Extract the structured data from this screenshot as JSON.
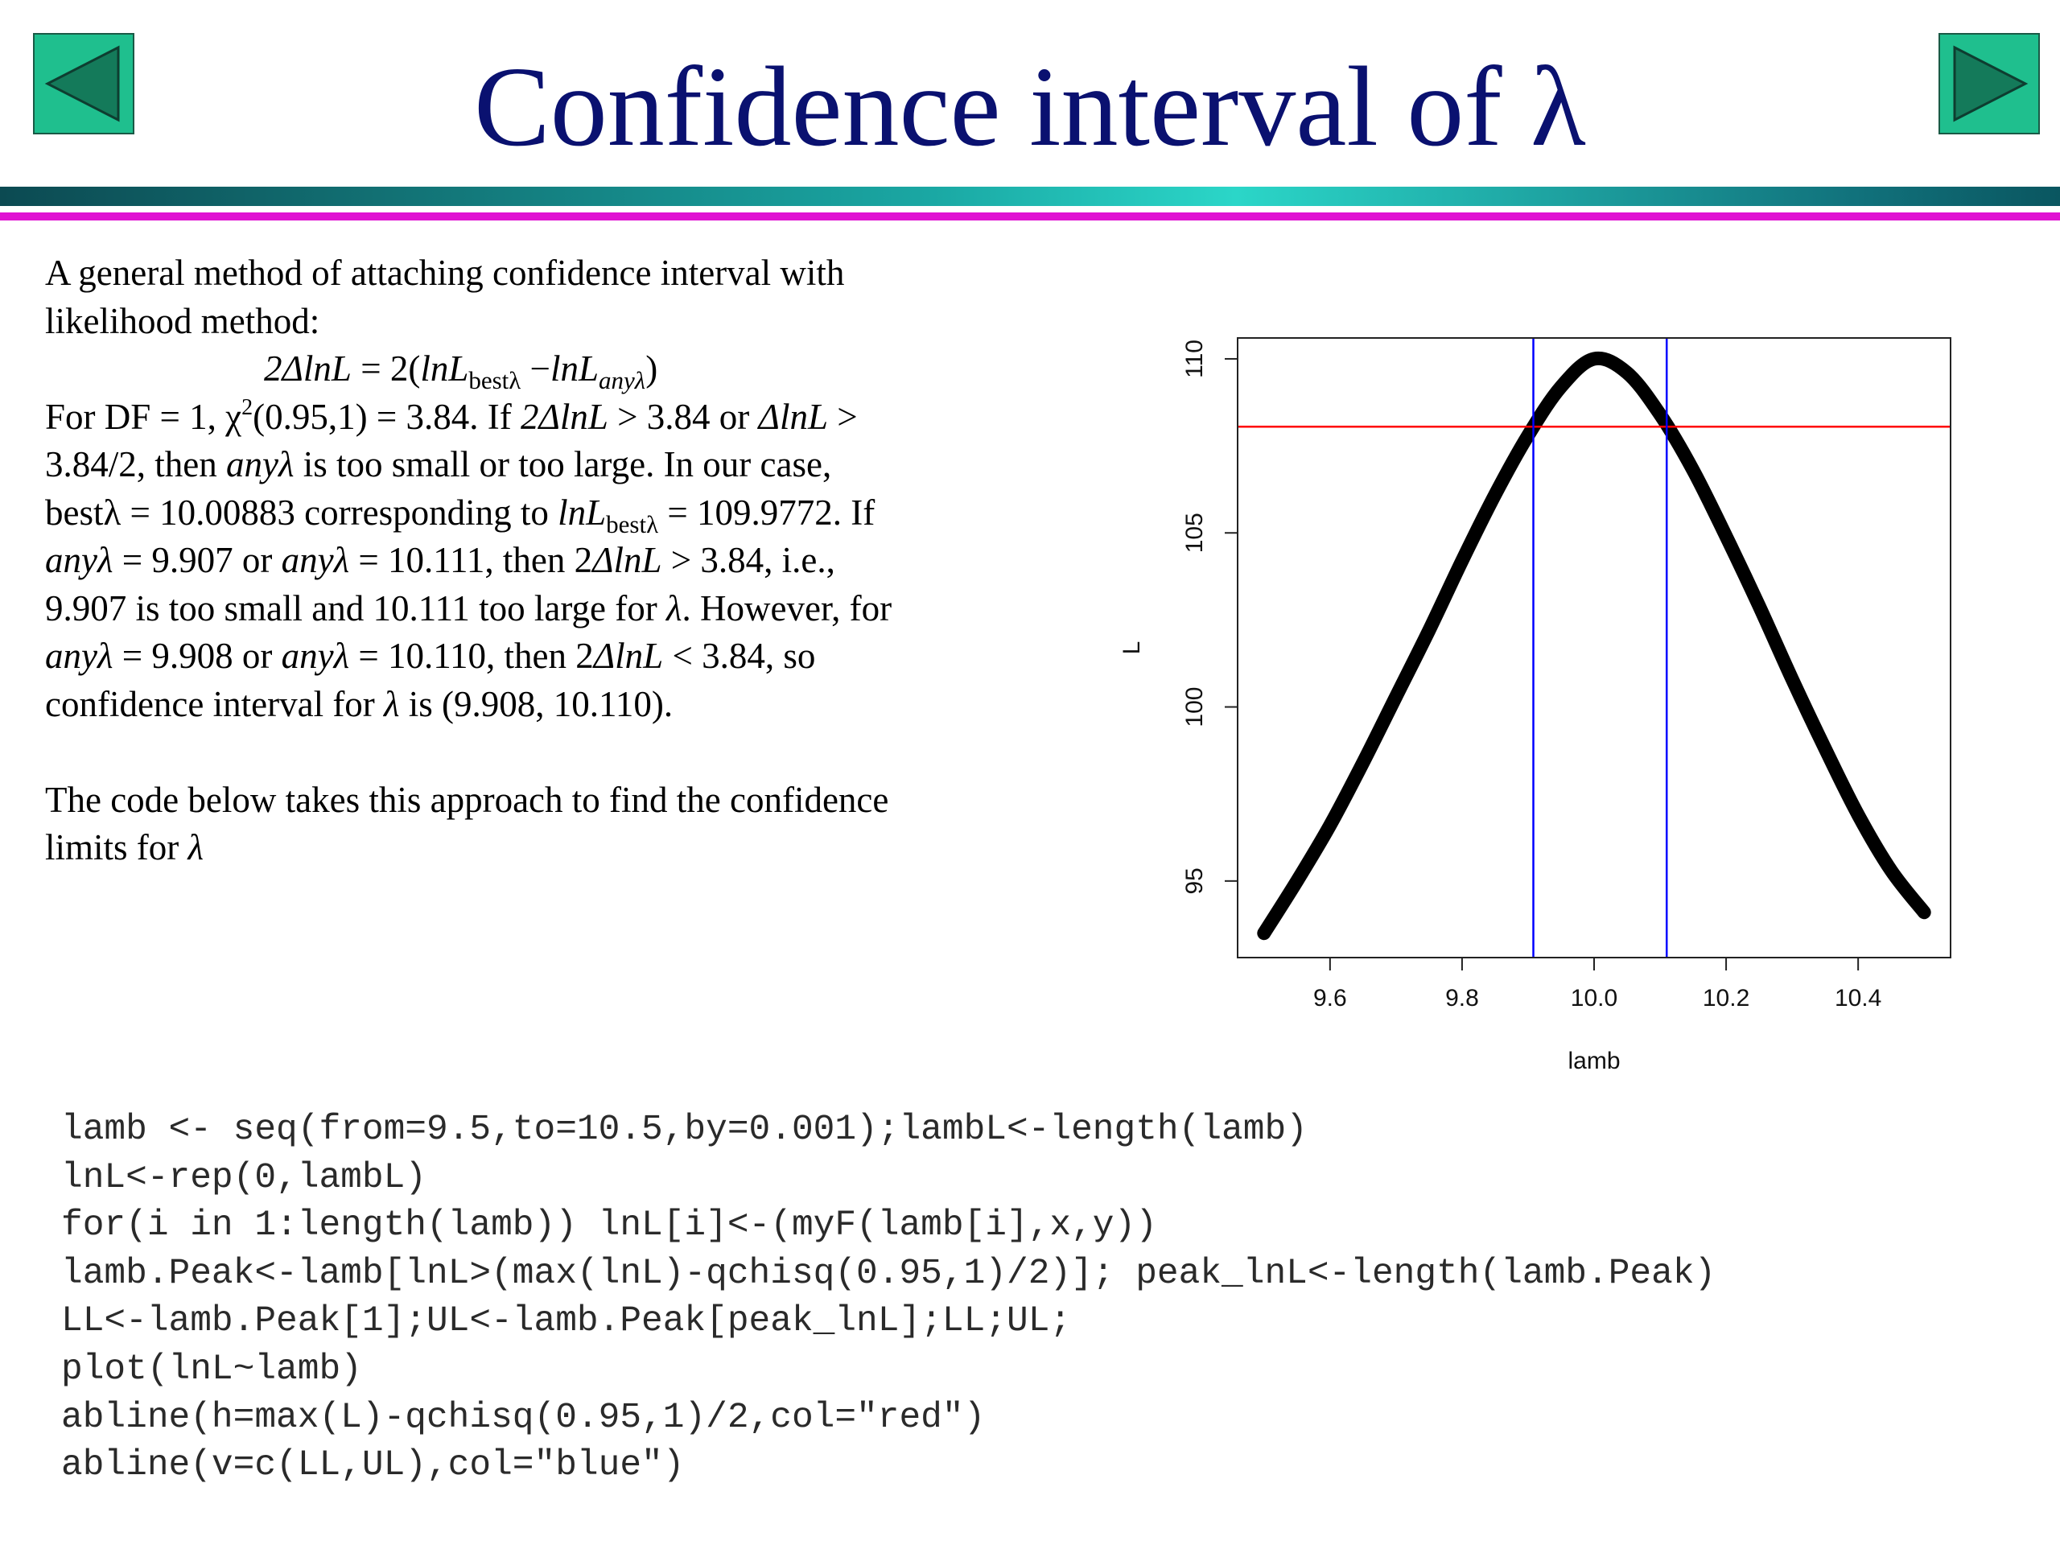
{
  "title": "Confidence interval of λ",
  "nav": {
    "prev_icon": "triangle-left-icon",
    "next_icon": "triangle-right-icon",
    "button_color": "#1fbf8e"
  },
  "text": {
    "p1a": "A general method of attaching confidence interval with",
    "p1b": "likelihood method:",
    "eq_lhs": "2ΔlnL",
    "eq_eq": " = 2(",
    "eq_t1": "lnL",
    "eq_s1": "bestλ",
    "eq_minus": "  −",
    "eq_t2": "lnL",
    "eq_s2": "anyλ",
    "eq_close": ")",
    "l3a": "For DF = 1, χ",
    "l3sup": "2",
    "l3b": "(0.95,1) = 3.84. If ",
    "l3c": "2ΔlnL",
    "l3d": " > 3.84 or ",
    "l3e": "ΔlnL",
    "l3f": " >",
    "l4a": "3.84/2, then ",
    "l4b": "anyλ",
    "l4c": " is too small or too large. In our case,",
    "l5a": "bestλ = 10.00883 corresponding to ",
    "l5b": "lnL",
    "l5sub": "bestλ",
    "l5c": " = 109.9772. If",
    "l6a": "anyλ",
    "l6b": " = 9.907 or ",
    "l6c": "anyλ",
    "l6d": " = 10.111, then 2",
    "l6e": "ΔlnL",
    "l6f": " > 3.84, i.e.,",
    "l7a": "9.907 is too small and 10.111 too large for ",
    "l7b": "λ",
    "l7c": ". However, for",
    "l8a": "anyλ",
    "l8b": " = 9.908 or ",
    "l8c": "anyλ",
    "l8d": " = 10.110, then 2",
    "l8e": "ΔlnL",
    "l8f": " < 3.84, so",
    "l9a": "confidence interval for ",
    "l9b": "λ",
    "l9c": " is (9.908, 10.110).",
    "p3a": "The code below takes this approach to find the confidence",
    "p3b": "limits for ",
    "p3c": "λ"
  },
  "code": [
    "lamb <- seq(from=9.5,to=10.5,by=0.001);lambL<-length(lamb)",
    "lnL<-rep(0,lambL)",
    "for(i in 1:length(lamb)) lnL[i]<-(myF(lamb[i],x,y))",
    "lamb.Peak<-lamb[lnL>(max(lnL)-qchisq(0.95,1)/2)]; peak_lnL<-length(lamb.Peak)",
    "LL<-lamb.Peak[1];UL<-lamb.Peak[peak_lnL];LL;UL;",
    "plot(lnL~lamb)",
    "abline(h=max(L)-qchisq(0.95,1)/2,col=\"red\")",
    "abline(v=c(LL,UL),col=\"blue\")"
  ],
  "chart_data": {
    "type": "line",
    "xlabel": "lamb",
    "ylabel": "L",
    "xlim": [
      9.46,
      10.54
    ],
    "ylim": [
      92.8,
      110.6
    ],
    "xticks": [
      9.6,
      9.8,
      10.0,
      10.2,
      10.4
    ],
    "xtick_labels": [
      "9.6",
      "9.8",
      "10.0",
      "10.2",
      "10.4"
    ],
    "yticks": [
      95,
      100,
      105,
      110
    ],
    "ytick_labels": [
      "95",
      "100",
      "105",
      "110"
    ],
    "series": [
      {
        "color": "#000000",
        "x": [
          9.5,
          9.55,
          9.6,
          9.65,
          9.7,
          9.75,
          9.8,
          9.85,
          9.9,
          9.95,
          10.0,
          10.05,
          10.1,
          10.15,
          10.2,
          10.25,
          10.3,
          10.35,
          10.4,
          10.45,
          10.5
        ],
        "y": [
          93.5,
          95.0,
          96.6,
          98.4,
          100.3,
          102.2,
          104.2,
          106.1,
          107.8,
          109.2,
          110.0,
          109.6,
          108.4,
          106.8,
          104.9,
          102.9,
          100.8,
          98.8,
          96.9,
          95.3,
          94.1
        ]
      }
    ],
    "hline": {
      "y": 108.05,
      "color": "#ff0000"
    },
    "vlines": {
      "x": [
        9.908,
        10.11
      ],
      "color": "#0000ff"
    },
    "grid": false,
    "legend": "none"
  }
}
